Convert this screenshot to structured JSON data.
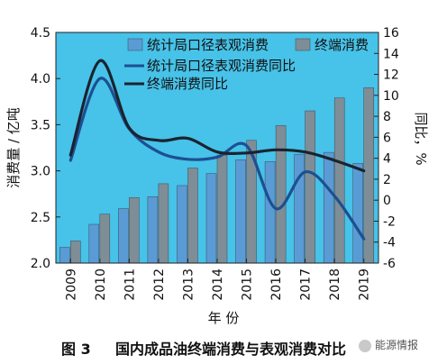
{
  "chart_data": {
    "type": "bar",
    "categories": [
      "2009",
      "2010",
      "2011",
      "2012",
      "2013",
      "2014",
      "2015",
      "2016",
      "2017",
      "2018",
      "2019"
    ],
    "left_axis": {
      "label": "消费量 / 亿吨",
      "ylim": [
        2.0,
        4.5
      ],
      "ticks": [
        "2.0",
        "2.5",
        "3.0",
        "3.5",
        "4.0",
        "4.5"
      ]
    },
    "right_axis": {
      "label": "同比，%",
      "ylim": [
        -6,
        16
      ],
      "ticks": [
        "-6",
        "-4",
        "-2",
        "0",
        "2",
        "4",
        "6",
        "8",
        "10",
        "12",
        "14",
        "16"
      ]
    },
    "xlabel": "年 份",
    "series": [
      {
        "name": "统计局口径表观消费",
        "kind": "bar",
        "axis": "left",
        "color": "#5b9bd5",
        "values": [
          2.17,
          2.42,
          2.59,
          2.72,
          2.84,
          2.97,
          3.12,
          3.1,
          3.18,
          3.2,
          3.08
        ]
      },
      {
        "name": "终端消费",
        "kind": "bar",
        "axis": "left",
        "color": "#7f8d97",
        "values": [
          2.24,
          2.53,
          2.71,
          2.86,
          3.03,
          3.17,
          3.33,
          3.49,
          3.65,
          3.79,
          3.9
        ]
      },
      {
        "name": "统计局口径表观消费同比",
        "kind": "line",
        "axis": "right",
        "color": "#1d4f91",
        "values": [
          3.8,
          11.6,
          6.8,
          4.6,
          3.9,
          4.1,
          5.2,
          -0.8,
          2.7,
          0.4,
          -3.7
        ]
      },
      {
        "name": "终端消费同比",
        "kind": "line",
        "axis": "right",
        "color": "#1a2330",
        "values": [
          4.3,
          13.3,
          6.9,
          5.7,
          5.9,
          4.6,
          4.5,
          4.8,
          4.6,
          3.8,
          2.8
        ]
      }
    ],
    "legend": "top, inside plot",
    "background": "#47c2e8",
    "grid": false
  },
  "caption": {
    "figure_number": "图 3",
    "title": "国内成品油终端消费与表观消费对比"
  },
  "watermark": "能源情报"
}
